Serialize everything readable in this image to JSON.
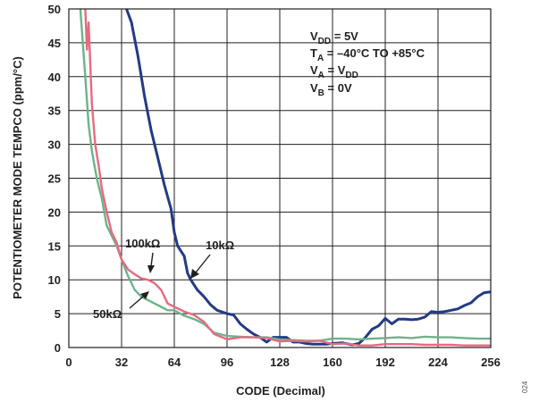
{
  "chart_data": {
    "type": "line",
    "title": "",
    "xlabel": "CODE (Decimal)",
    "ylabel": "POTENTIOMETER MODE TEMPCO (ppm/°C)",
    "xlim": [
      0,
      256
    ],
    "ylim": [
      0,
      50
    ],
    "xticks": [
      0,
      32,
      64,
      96,
      128,
      160,
      192,
      224,
      256
    ],
    "yticks": [
      0,
      5,
      10,
      15,
      20,
      25,
      30,
      35,
      40,
      45,
      50
    ],
    "grid": true,
    "conditions": {
      "line1": {
        "pre": "V",
        "sub": "DD",
        "post": " = 5V"
      },
      "line2": {
        "pre": "T",
        "sub": "A",
        "post": " = –40°C TO +85°C"
      },
      "line3": {
        "pre": "V",
        "sub": "A",
        "post": " = V",
        "sub2": "DD"
      },
      "line4": {
        "pre": "V",
        "sub": "B",
        "post": " = 0V"
      }
    },
    "figure_id": "024",
    "series": [
      {
        "name": "10kΩ",
        "color": "#233a85",
        "x": [
          35,
          38,
          42,
          46,
          50,
          54,
          58,
          62,
          64,
          66,
          70,
          72,
          74,
          78,
          82,
          86,
          90,
          96,
          100,
          104,
          108,
          112,
          116,
          120,
          124,
          128,
          132,
          136,
          140,
          144,
          148,
          152,
          156,
          160,
          166,
          172,
          176,
          180,
          184,
          188,
          192,
          196,
          200,
          204,
          208,
          212,
          216,
          220,
          224,
          228,
          232,
          236,
          240,
          244,
          248,
          252,
          256
        ],
        "y": [
          50,
          48,
          43,
          37,
          32,
          28,
          24,
          20.5,
          17,
          15,
          13.5,
          11,
          10,
          8.5,
          7.5,
          6.3,
          5.5,
          5,
          4.8,
          3.5,
          2.7,
          2,
          1.5,
          0.8,
          1.5,
          1.5,
          1.5,
          0.8,
          0.8,
          0.6,
          0.5,
          0.5,
          0.5,
          0.6,
          0.7,
          0.4,
          0.6,
          1.5,
          2.7,
          3.2,
          4.3,
          3.5,
          4.2,
          4.2,
          4.1,
          4.2,
          4.5,
          5.3,
          5.2,
          5.3,
          5.5,
          5.7,
          6.2,
          6.6,
          7.5,
          8.1,
          8.2
        ]
      },
      {
        "name": "50kΩ",
        "color": "#6db38a",
        "x": [
          7,
          10,
          12,
          14,
          17,
          20,
          23,
          26,
          29,
          32,
          36,
          40,
          44,
          48,
          52,
          56,
          60,
          64,
          70,
          76,
          82,
          88,
          96,
          104,
          112,
          120,
          128,
          136,
          144,
          152,
          160,
          168,
          176,
          184,
          192,
          200,
          208,
          216,
          224,
          232,
          240,
          248,
          256
        ],
        "y": [
          50,
          40,
          33,
          29,
          25,
          22,
          18,
          16.5,
          15,
          13,
          10.5,
          8.5,
          7.5,
          7,
          6.5,
          6,
          5.5,
          5.5,
          4.7,
          4.2,
          3.5,
          2.2,
          1.7,
          1.6,
          1.5,
          1.5,
          1.2,
          1.1,
          1.0,
          1.0,
          1.3,
          1.3,
          1.2,
          1.3,
          1.4,
          1.5,
          1.4,
          1.6,
          1.5,
          1.5,
          1.4,
          1.3,
          1.3
        ]
      },
      {
        "name": "100kΩ",
        "color": "#e86a80",
        "x": [
          10,
          11,
          12,
          14,
          16,
          18,
          20,
          23,
          26,
          29,
          32,
          36,
          40,
          44,
          48,
          52,
          56,
          60,
          64,
          70,
          76,
          82,
          88,
          96,
          104,
          112,
          120,
          128,
          136,
          144,
          152,
          160,
          168,
          176,
          184,
          192,
          200,
          208,
          216,
          224,
          232,
          240,
          248,
          256
        ],
        "y": [
          50,
          44,
          48,
          36,
          30,
          27,
          23.5,
          20,
          17,
          15.5,
          13,
          11.5,
          10.8,
          10.2,
          10,
          9.5,
          8.5,
          6.5,
          6,
          5.3,
          4.8,
          3.8,
          2,
          1.2,
          1.5,
          1.5,
          1.4,
          0.9,
          1,
          0.9,
          1,
          0.5,
          0.6,
          0.3,
          0.3,
          0.5,
          0.5,
          0.5,
          0.4,
          0.4,
          0.4,
          0.3,
          0.3,
          0.3
        ]
      }
    ],
    "callouts": [
      {
        "text": "100kΩ",
        "series": "100kΩ"
      },
      {
        "text": "10kΩ",
        "series": "10kΩ"
      },
      {
        "text": "50kΩ",
        "series": "50kΩ"
      }
    ]
  }
}
